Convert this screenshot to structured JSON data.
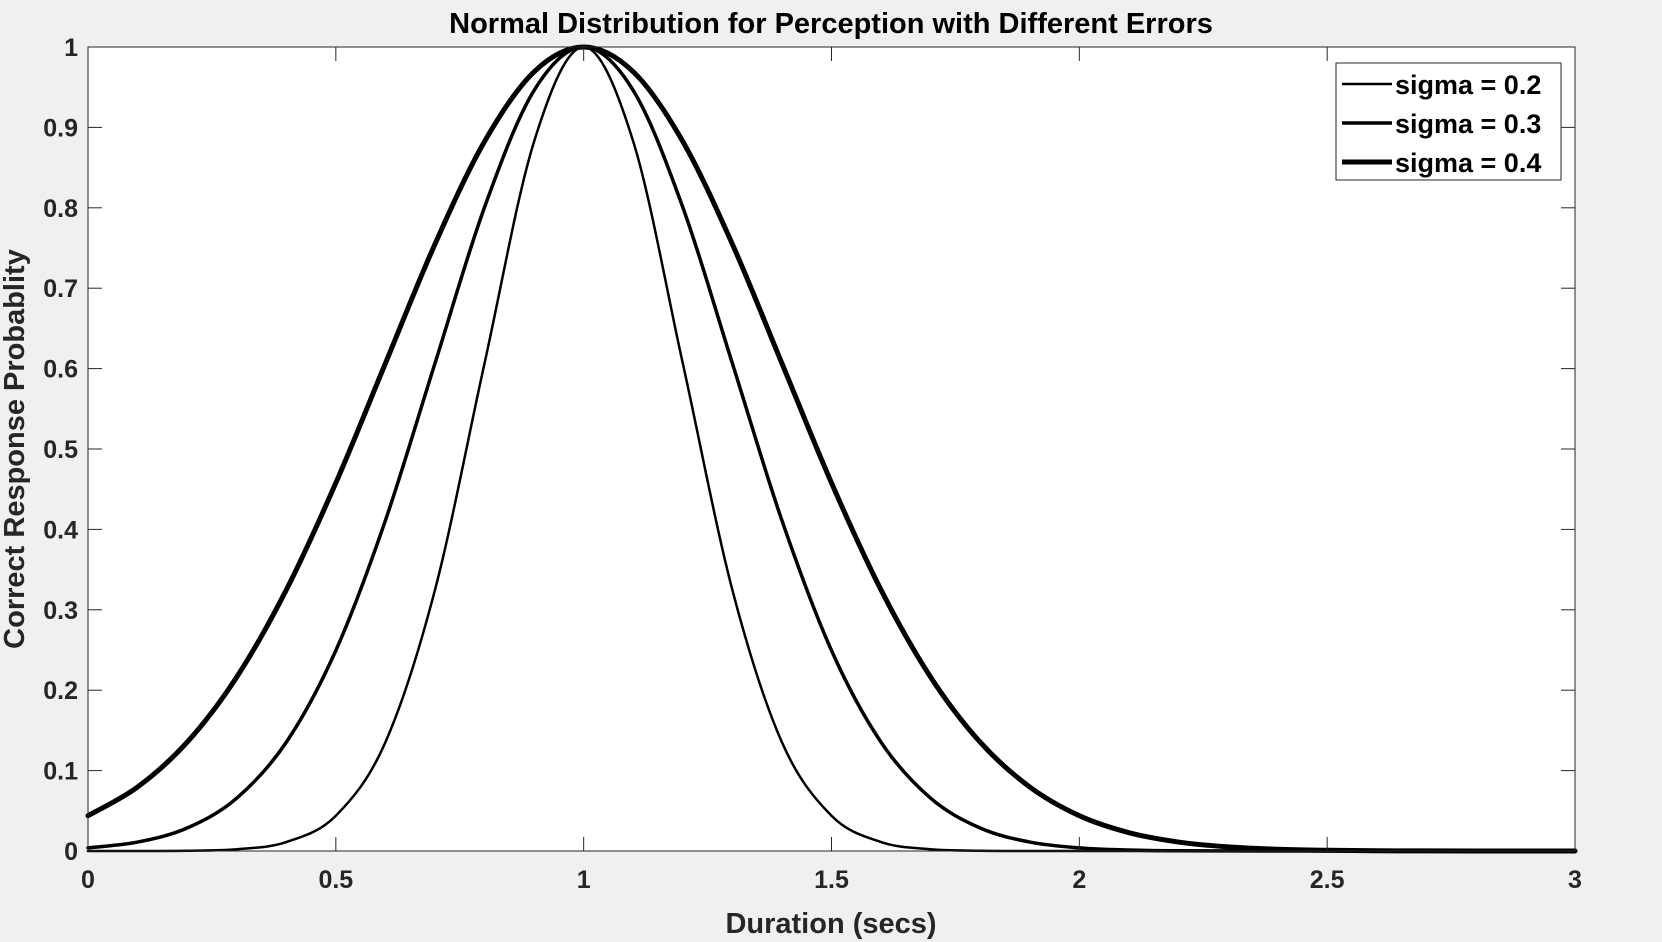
{
  "chart_data": {
    "type": "line",
    "title": "Normal Distribution for Perception with Different Errors",
    "xlabel": "Duration (secs)",
    "ylabel": "Correct Response Probablity",
    "xlim": [
      0,
      3
    ],
    "ylim": [
      0,
      1
    ],
    "xticks": [
      0,
      0.5,
      1,
      1.5,
      2,
      2.5,
      3
    ],
    "xtick_labels": [
      "0",
      "0.5",
      "1",
      "1.5",
      "2",
      "2.5",
      "3"
    ],
    "yticks": [
      0,
      0.1,
      0.2,
      0.3,
      0.4,
      0.5,
      0.6,
      0.7,
      0.8,
      0.9,
      1
    ],
    "ytick_labels": [
      "0",
      "0.1",
      "0.2",
      "0.3",
      "0.4",
      "0.5",
      "0.6",
      "0.7",
      "0.8",
      "0.9",
      "1"
    ],
    "grid": false,
    "legend_position": "top-right",
    "x": [
      0,
      0.1,
      0.2,
      0.3,
      0.4,
      0.5,
      0.6,
      0.7,
      0.8,
      0.9,
      1.0,
      1.1,
      1.2,
      1.3,
      1.4,
      1.5,
      1.6,
      1.7,
      1.8,
      1.9,
      2.0,
      2.1,
      2.2,
      2.3,
      2.4,
      2.5,
      2.6,
      2.7,
      2.8,
      2.9,
      3.0
    ],
    "series": [
      {
        "name": "sigma = 0.2",
        "color": "#000000",
        "values": [
          0.0,
          0.0,
          0.0003,
          0.0022,
          0.0111,
          0.0439,
          0.1353,
          0.3247,
          0.6065,
          0.8825,
          1.0,
          0.8825,
          0.6065,
          0.3247,
          0.1353,
          0.0439,
          0.0111,
          0.0022,
          0.0003,
          0.0,
          0.0,
          0.0,
          0.0,
          0.0,
          0.0,
          0.0,
          0.0,
          0.0,
          0.0,
          0.0,
          0.0
        ]
      },
      {
        "name": "sigma = 0.3",
        "color": "#000000",
        "values": [
          0.0039,
          0.0111,
          0.0286,
          0.0657,
          0.1353,
          0.2494,
          0.4111,
          0.6065,
          0.8007,
          0.946,
          1.0,
          0.946,
          0.8007,
          0.6065,
          0.4111,
          0.2494,
          0.1353,
          0.0657,
          0.0286,
          0.0111,
          0.0039,
          0.0012,
          0.0003,
          0.0001,
          0.0,
          0.0,
          0.0,
          0.0,
          0.0,
          0.0,
          0.0
        ]
      },
      {
        "name": "sigma = 0.4",
        "color": "#000000",
        "values": [
          0.0439,
          0.0796,
          0.1353,
          0.2163,
          0.3247,
          0.4578,
          0.6065,
          0.7548,
          0.8825,
          0.9692,
          1.0,
          0.9692,
          0.8825,
          0.7548,
          0.6065,
          0.4578,
          0.3247,
          0.2163,
          0.1353,
          0.0796,
          0.0439,
          0.0228,
          0.0111,
          0.0051,
          0.0022,
          0.0009,
          0.0003,
          0.0001,
          0.0,
          0.0,
          0.0
        ]
      }
    ]
  }
}
